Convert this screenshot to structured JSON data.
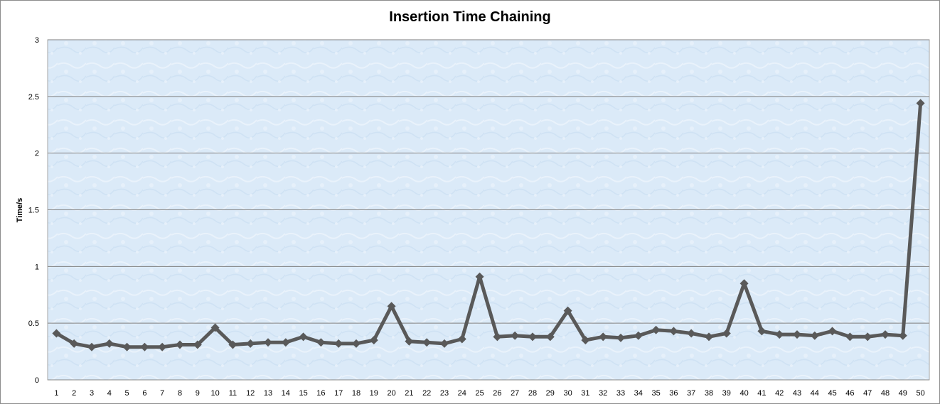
{
  "chart_data": {
    "type": "line",
    "title": "Insertion Time Chaining",
    "xlabel": "",
    "ylabel": "Time/s",
    "ylim": [
      0,
      3
    ],
    "yticks": [
      "0",
      "0.5",
      "1",
      "1.5",
      "2",
      "2.5",
      "3"
    ],
    "grid": true,
    "legend": "none",
    "categories": [
      "1",
      "2",
      "3",
      "4",
      "5",
      "6",
      "7",
      "8",
      "9",
      "10",
      "11",
      "12",
      "13",
      "14",
      "15",
      "16",
      "17",
      "18",
      "19",
      "20",
      "21",
      "22",
      "23",
      "24",
      "25",
      "26",
      "27",
      "28",
      "29",
      "30",
      "31",
      "32",
      "33",
      "34",
      "35",
      "36",
      "37",
      "38",
      "39",
      "40",
      "41",
      "42",
      "43",
      "44",
      "45",
      "46",
      "47",
      "48",
      "49",
      "50"
    ],
    "series": [
      {
        "name": "",
        "color": "#595959",
        "values": [
          0.41,
          0.32,
          0.29,
          0.32,
          0.29,
          0.29,
          0.29,
          0.31,
          0.31,
          0.46,
          0.31,
          0.32,
          0.33,
          0.33,
          0.38,
          0.33,
          0.32,
          0.32,
          0.35,
          0.65,
          0.34,
          0.33,
          0.32,
          0.36,
          0.91,
          0.38,
          0.39,
          0.38,
          0.38,
          0.61,
          0.35,
          0.38,
          0.37,
          0.39,
          0.44,
          0.43,
          0.41,
          0.38,
          0.41,
          0.85,
          0.43,
          0.4,
          0.4,
          0.39,
          0.43,
          0.38,
          0.38,
          0.4,
          0.39,
          2.44
        ]
      }
    ],
    "plot_background": "#dbeaf8",
    "gridline_color": "#7f7f7f"
  }
}
